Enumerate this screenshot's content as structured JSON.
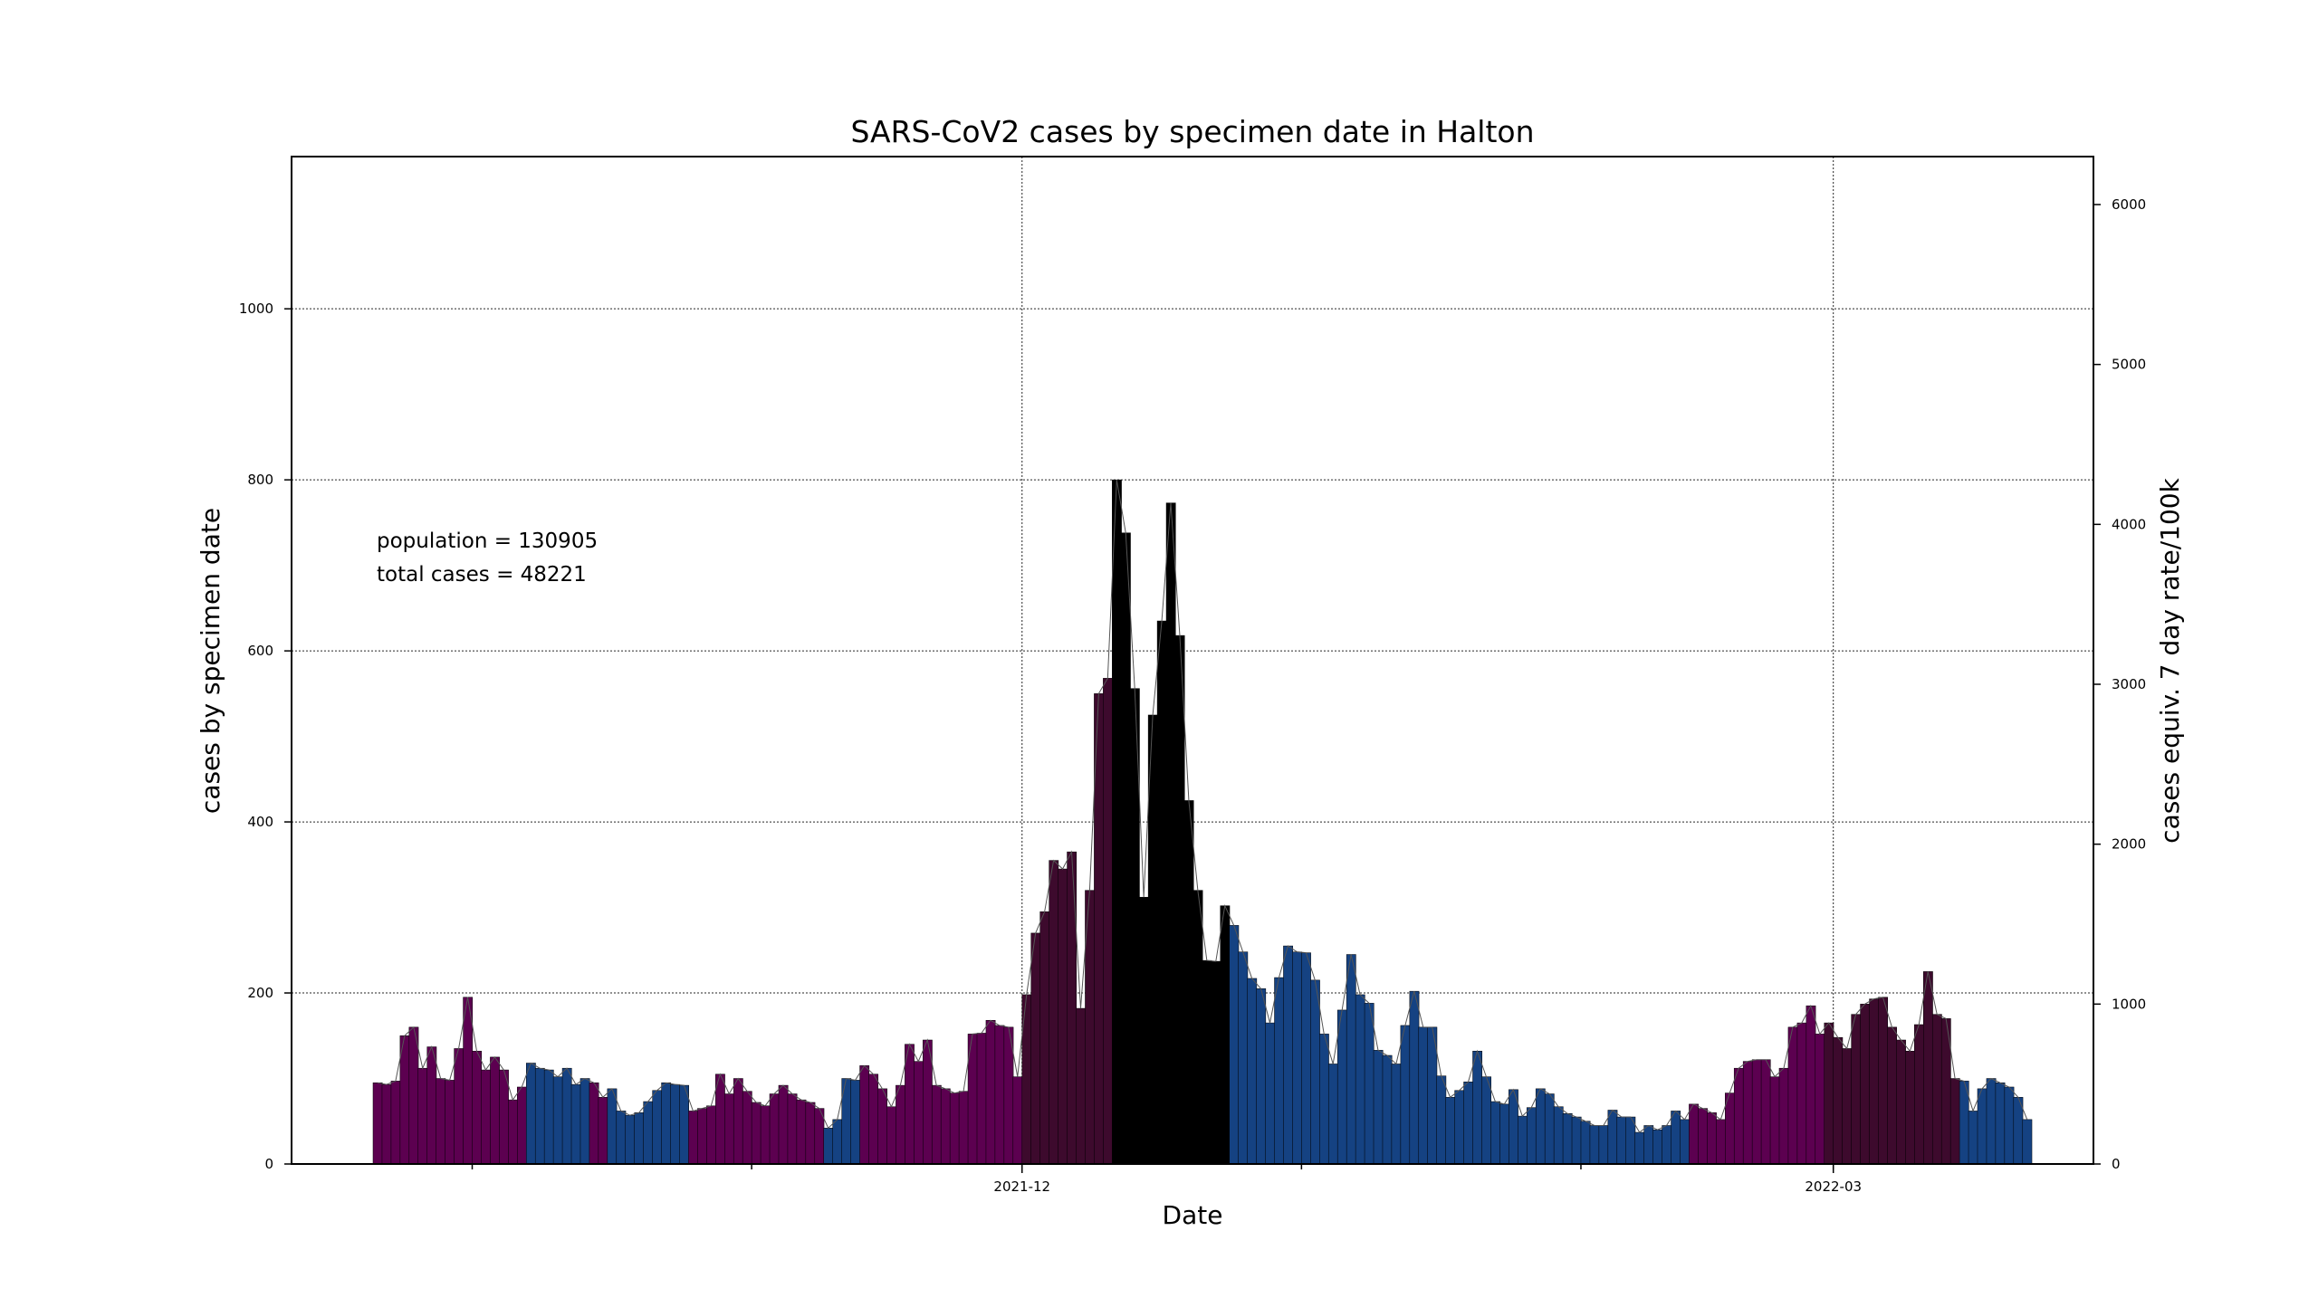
{
  "chart_data": {
    "type": "bar",
    "title": "SARS-CoV2 cases by specimen date in Halton",
    "xlabel": "Date",
    "ylabel": "cases by specimen date",
    "ylabel_right": "cases equiv. 7 day rate/100k",
    "annotations": [
      "population = 130905",
      "total cases = 48221"
    ],
    "x_ticks": [
      "2021-12",
      "2022-03"
    ],
    "y_ticks": [
      0,
      200,
      400,
      600,
      800,
      1000
    ],
    "y_ticks_right": [
      0,
      1000,
      2000,
      3000,
      4000,
      5000,
      6000
    ],
    "ylim": [
      0,
      1178
    ],
    "ylim_right": [
      0,
      6300
    ],
    "grid": true,
    "colors": {
      "purple": "#5c0050",
      "blue": "#154282",
      "dark": "#3d0a2d",
      "black": "#000000",
      "provisional": "#b07aa8",
      "marker_line": "#e02020"
    },
    "start_date": "2021-09-20",
    "provisional_from": "2022-04-30",
    "values": [
      95,
      93,
      97,
      150,
      160,
      112,
      137,
      100,
      98,
      135,
      195,
      132,
      110,
      125,
      110,
      75,
      90,
      118,
      112,
      110,
      102,
      112,
      93,
      100,
      95,
      78,
      88,
      62,
      57,
      60,
      73,
      86,
      95,
      93,
      92,
      62,
      65,
      68,
      105,
      82,
      100,
      85,
      72,
      68,
      82,
      92,
      82,
      75,
      72,
      65,
      42,
      52,
      100,
      98,
      115,
      105,
      88,
      67,
      92,
      140,
      120,
      145,
      92,
      88,
      83,
      85,
      152,
      153,
      168,
      162,
      160,
      102,
      198,
      270,
      295,
      355,
      345,
      365,
      182,
      320,
      550,
      568,
      800,
      738,
      556,
      312,
      525,
      635,
      773,
      618,
      425,
      320,
      238,
      237,
      302,
      279,
      248,
      217,
      205,
      165,
      218,
      255,
      248,
      247,
      215,
      152,
      117,
      180,
      245,
      198,
      188,
      133,
      127,
      117,
      162,
      202,
      160,
      160,
      103,
      78,
      86,
      96,
      132,
      102,
      73,
      70,
      87,
      56,
      66,
      88,
      82,
      67,
      59,
      55,
      50,
      45,
      45,
      63,
      55,
      55,
      37,
      45,
      40,
      45,
      62,
      52,
      70,
      65,
      60,
      52,
      83,
      112,
      120,
      122,
      122,
      102,
      112,
      160,
      165,
      185,
      152,
      165,
      148,
      135,
      175,
      187,
      193,
      195,
      160,
      145,
      132,
      163,
      225,
      175,
      170,
      100,
      97,
      62,
      88,
      100,
      95,
      90,
      78,
      52
    ]
  }
}
